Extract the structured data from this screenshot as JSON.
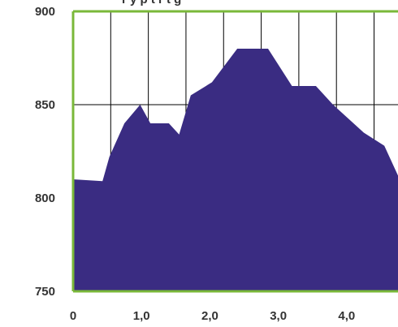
{
  "partial_title": "r      y     p     t     r     t     g",
  "chart_data": {
    "type": "area",
    "x": [
      0,
      0.43,
      0.53,
      0.75,
      0.98,
      1.13,
      1.4,
      1.55,
      1.72,
      2.03,
      2.4,
      2.85,
      3.2,
      3.55,
      3.8,
      4.25,
      4.55,
      4.75
    ],
    "y": [
      810,
      809,
      822,
      840,
      850,
      840,
      840,
      834,
      855,
      862,
      880,
      880,
      860,
      860,
      850,
      835,
      828,
      812
    ],
    "xlim": [
      0,
      4.75
    ],
    "ylim": [
      750,
      900
    ],
    "x_ticks": [
      0,
      1.0,
      2.0,
      3.0,
      4.0
    ],
    "x_tick_labels": [
      "0",
      "1,0",
      "2,0",
      "3,0",
      "4,0"
    ],
    "y_ticks": [
      750,
      800,
      850,
      900
    ],
    "y_tick_labels": [
      "750",
      "800",
      "850",
      "900"
    ],
    "vertical_grid_x": [
      0.55,
      1.1,
      1.65,
      2.2,
      2.75,
      3.3,
      3.85,
      4.4
    ],
    "grid": true,
    "legend": "none",
    "colors": {
      "fill": "#3a2c82",
      "frame": "#7ab839",
      "grid": "#000000",
      "text": "#333333"
    }
  }
}
